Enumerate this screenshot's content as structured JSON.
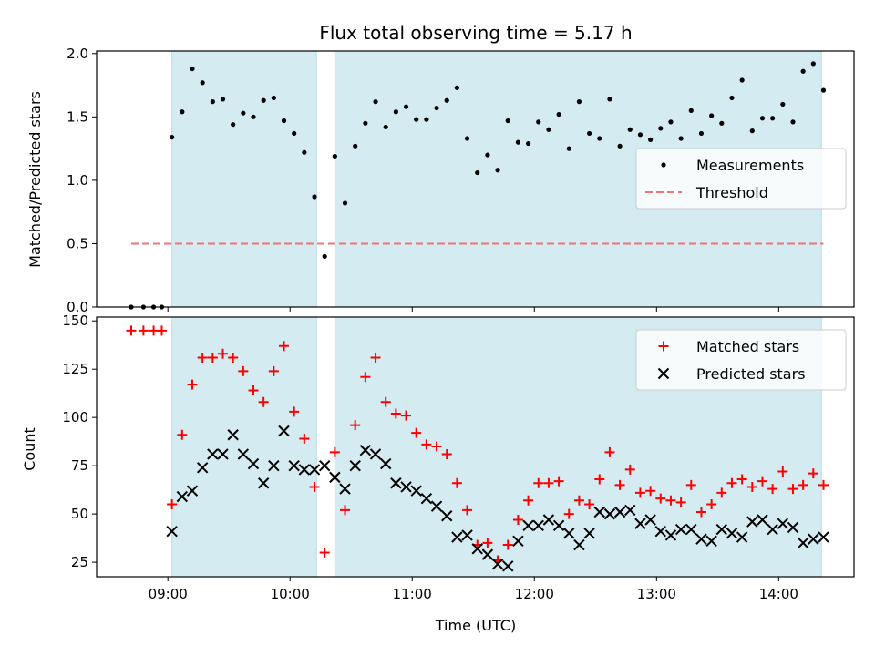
{
  "chart_data": {
    "type": "scatter",
    "title": "Flux total observing time = 5.17 h",
    "xlabel": "Time (UTC)",
    "x_ticks": [
      "09:00",
      "10:00",
      "11:00",
      "12:00",
      "13:00",
      "14:00"
    ],
    "shaded_intervals": [
      [
        "09:02",
        "10:13"
      ],
      [
        "10:22",
        "14:21"
      ]
    ],
    "shade_color": "#d4ebf1",
    "panels": [
      {
        "id": "ratio",
        "ylabel": "Matched/Predicted stars",
        "ylim": [
          0,
          2.02
        ],
        "y_ticks": [
          "0.0",
          "0.5",
          "1.0",
          "1.5",
          "2.0"
        ],
        "legend_position": "center-right",
        "series": [
          {
            "name": "Measurements",
            "marker": "dot",
            "color": "#000000",
            "points": [
              [
                "08:42",
                0.0
              ],
              [
                "08:48",
                0.0
              ],
              [
                "08:53",
                0.0
              ],
              [
                "08:57",
                0.0
              ],
              [
                "09:02",
                1.34
              ],
              [
                "09:07",
                1.54
              ],
              [
                "09:12",
                1.88
              ],
              [
                "09:17",
                1.77
              ],
              [
                "09:22",
                1.62
              ],
              [
                "09:27",
                1.64
              ],
              [
                "09:32",
                1.44
              ],
              [
                "09:37",
                1.53
              ],
              [
                "09:42",
                1.5
              ],
              [
                "09:47",
                1.63
              ],
              [
                "09:52",
                1.65
              ],
              [
                "09:57",
                1.47
              ],
              [
                "10:02",
                1.37
              ],
              [
                "10:07",
                1.22
              ],
              [
                "10:12",
                0.87
              ],
              [
                "10:17",
                0.4
              ],
              [
                "10:22",
                1.19
              ],
              [
                "10:27",
                0.82
              ],
              [
                "10:32",
                1.27
              ],
              [
                "10:37",
                1.45
              ],
              [
                "10:42",
                1.62
              ],
              [
                "10:47",
                1.42
              ],
              [
                "10:52",
                1.54
              ],
              [
                "10:57",
                1.58
              ],
              [
                "11:02",
                1.48
              ],
              [
                "11:07",
                1.48
              ],
              [
                "11:12",
                1.57
              ],
              [
                "11:17",
                1.63
              ],
              [
                "11:22",
                1.73
              ],
              [
                "11:27",
                1.33
              ],
              [
                "11:32",
                1.06
              ],
              [
                "11:37",
                1.2
              ],
              [
                "11:42",
                1.08
              ],
              [
                "11:47",
                1.47
              ],
              [
                "11:52",
                1.3
              ],
              [
                "11:57",
                1.29
              ],
              [
                "12:02",
                1.46
              ],
              [
                "12:07",
                1.4
              ],
              [
                "12:12",
                1.52
              ],
              [
                "12:17",
                1.25
              ],
              [
                "12:22",
                1.62
              ],
              [
                "12:27",
                1.37
              ],
              [
                "12:32",
                1.33
              ],
              [
                "12:37",
                1.64
              ],
              [
                "12:42",
                1.27
              ],
              [
                "12:47",
                1.4
              ],
              [
                "12:52",
                1.36
              ],
              [
                "12:57",
                1.32
              ],
              [
                "13:02",
                1.41
              ],
              [
                "13:07",
                1.46
              ],
              [
                "13:12",
                1.33
              ],
              [
                "13:17",
                1.55
              ],
              [
                "13:22",
                1.37
              ],
              [
                "13:27",
                1.51
              ],
              [
                "13:32",
                1.45
              ],
              [
                "13:37",
                1.65
              ],
              [
                "13:42",
                1.79
              ],
              [
                "13:47",
                1.39
              ],
              [
                "13:52",
                1.49
              ],
              [
                "13:57",
                1.49
              ],
              [
                "14:02",
                1.6
              ],
              [
                "14:07",
                1.46
              ],
              [
                "14:12",
                1.86
              ],
              [
                "14:17",
                1.92
              ],
              [
                "14:22",
                1.71
              ]
            ]
          },
          {
            "name": "Threshold",
            "marker": "dashed-line",
            "color": "#f07474",
            "points": [
              [
                "08:42",
                0.5
              ],
              [
                "14:22",
                0.5
              ]
            ]
          }
        ]
      },
      {
        "id": "counts",
        "ylabel": "Count",
        "ylim": [
          17.5,
          152
        ],
        "y_ticks": [
          "25",
          "50",
          "75",
          "100",
          "125",
          "150"
        ],
        "legend_position": "top-right",
        "series": [
          {
            "name": "Matched stars",
            "marker": "plus",
            "color": "#ff0000",
            "points": [
              [
                "08:42",
                145
              ],
              [
                "08:48",
                145
              ],
              [
                "08:53",
                145
              ],
              [
                "08:57",
                145
              ],
              [
                "09:02",
                55
              ],
              [
                "09:07",
                91
              ],
              [
                "09:12",
                117
              ],
              [
                "09:17",
                131
              ],
              [
                "09:22",
                131
              ],
              [
                "09:27",
                133
              ],
              [
                "09:32",
                131
              ],
              [
                "09:37",
                124
              ],
              [
                "09:42",
                114
              ],
              [
                "09:47",
                108
              ],
              [
                "09:52",
                124
              ],
              [
                "09:57",
                137
              ],
              [
                "10:02",
                103
              ],
              [
                "10:07",
                89
              ],
              [
                "10:12",
                64
              ],
              [
                "10:17",
                30
              ],
              [
                "10:22",
                82
              ],
              [
                "10:27",
                52
              ],
              [
                "10:32",
                96
              ],
              [
                "10:37",
                121
              ],
              [
                "10:42",
                131
              ],
              [
                "10:47",
                108
              ],
              [
                "10:52",
                102
              ],
              [
                "10:57",
                101
              ],
              [
                "11:02",
                92
              ],
              [
                "11:07",
                86
              ],
              [
                "11:12",
                85
              ],
              [
                "11:17",
                81
              ],
              [
                "11:22",
                66
              ],
              [
                "11:27",
                52
              ],
              [
                "11:32",
                34
              ],
              [
                "11:37",
                35
              ],
              [
                "11:42",
                26
              ],
              [
                "11:47",
                34
              ],
              [
                "11:52",
                47
              ],
              [
                "11:57",
                57
              ],
              [
                "12:02",
                66
              ],
              [
                "12:07",
                66
              ],
              [
                "12:12",
                67
              ],
              [
                "12:17",
                50
              ],
              [
                "12:22",
                57
              ],
              [
                "12:27",
                55
              ],
              [
                "12:32",
                68
              ],
              [
                "12:37",
                82
              ],
              [
                "12:42",
                65
              ],
              [
                "12:47",
                73
              ],
              [
                "12:52",
                61
              ],
              [
                "12:57",
                62
              ],
              [
                "13:02",
                58
              ],
              [
                "13:07",
                57
              ],
              [
                "13:12",
                56
              ],
              [
                "13:17",
                65
              ],
              [
                "13:22",
                51
              ],
              [
                "13:27",
                55
              ],
              [
                "13:32",
                61
              ],
              [
                "13:37",
                66
              ],
              [
                "13:42",
                68
              ],
              [
                "13:47",
                64
              ],
              [
                "13:52",
                67
              ],
              [
                "13:57",
                63
              ],
              [
                "14:02",
                72
              ],
              [
                "14:07",
                63
              ],
              [
                "14:12",
                65
              ],
              [
                "14:17",
                71
              ],
              [
                "14:22",
                65
              ]
            ]
          },
          {
            "name": "Predicted stars",
            "marker": "x",
            "color": "#000000",
            "points": [
              [
                "09:02",
                41
              ],
              [
                "09:07",
                59
              ],
              [
                "09:12",
                62
              ],
              [
                "09:17",
                74
              ],
              [
                "09:22",
                81
              ],
              [
                "09:27",
                81
              ],
              [
                "09:32",
                91
              ],
              [
                "09:37",
                81
              ],
              [
                "09:42",
                76
              ],
              [
                "09:47",
                66
              ],
              [
                "09:52",
                75
              ],
              [
                "09:57",
                93
              ],
              [
                "10:02",
                75
              ],
              [
                "10:07",
                73
              ],
              [
                "10:12",
                73
              ],
              [
                "10:17",
                75
              ],
              [
                "10:22",
                69
              ],
              [
                "10:27",
                63
              ],
              [
                "10:32",
                75
              ],
              [
                "10:37",
                83
              ],
              [
                "10:42",
                81
              ],
              [
                "10:47",
                76
              ],
              [
                "10:52",
                66
              ],
              [
                "10:57",
                64
              ],
              [
                "11:02",
                62
              ],
              [
                "11:07",
                58
              ],
              [
                "11:12",
                54
              ],
              [
                "11:17",
                49
              ],
              [
                "11:22",
                38
              ],
              [
                "11:27",
                39
              ],
              [
                "11:32",
                32
              ],
              [
                "11:37",
                29
              ],
              [
                "11:42",
                24
              ],
              [
                "11:47",
                23
              ],
              [
                "11:52",
                36
              ],
              [
                "11:57",
                44
              ],
              [
                "12:02",
                44
              ],
              [
                "12:07",
                47
              ],
              [
                "12:12",
                44
              ],
              [
                "12:17",
                40
              ],
              [
                "12:22",
                34
              ],
              [
                "12:27",
                40
              ],
              [
                "12:32",
                51
              ],
              [
                "12:37",
                50
              ],
              [
                "12:42",
                51
              ],
              [
                "12:47",
                52
              ],
              [
                "12:52",
                45
              ],
              [
                "12:57",
                47
              ],
              [
                "13:02",
                41
              ],
              [
                "13:07",
                39
              ],
              [
                "13:12",
                42
              ],
              [
                "13:17",
                42
              ],
              [
                "13:22",
                37
              ],
              [
                "13:27",
                36
              ],
              [
                "13:32",
                42
              ],
              [
                "13:37",
                40
              ],
              [
                "13:42",
                38
              ],
              [
                "13:47",
                46
              ],
              [
                "13:52",
                47
              ],
              [
                "13:57",
                42
              ],
              [
                "14:02",
                45
              ],
              [
                "14:07",
                43
              ],
              [
                "14:12",
                35
              ],
              [
                "14:17",
                37
              ],
              [
                "14:22",
                38
              ]
            ]
          }
        ]
      }
    ]
  }
}
